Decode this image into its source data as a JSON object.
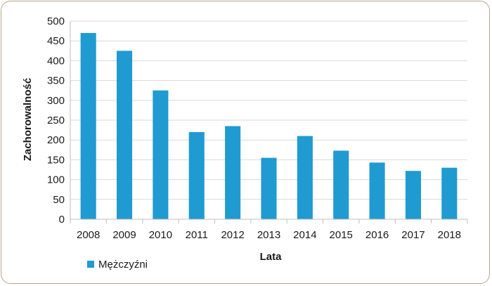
{
  "chart_data": {
    "type": "bar",
    "title": "",
    "xlabel": "Lata",
    "ylabel": "Zachorowalność",
    "categories": [
      "2008",
      "2009",
      "2010",
      "2011",
      "2012",
      "2013",
      "2014",
      "2015",
      "2016",
      "2017",
      "2018"
    ],
    "series": [
      {
        "name": "Mężczyźni",
        "color": "#1f9bd1",
        "values": [
          470,
          425,
          325,
          220,
          235,
          155,
          210,
          173,
          143,
          122,
          130
        ]
      }
    ],
    "ylim": [
      0,
      500
    ],
    "yticks": [
      "0",
      "50",
      "100",
      "150",
      "200",
      "250",
      "300",
      "350",
      "400",
      "450",
      "500"
    ],
    "grid": true,
    "legend_position": "bottom-left"
  }
}
